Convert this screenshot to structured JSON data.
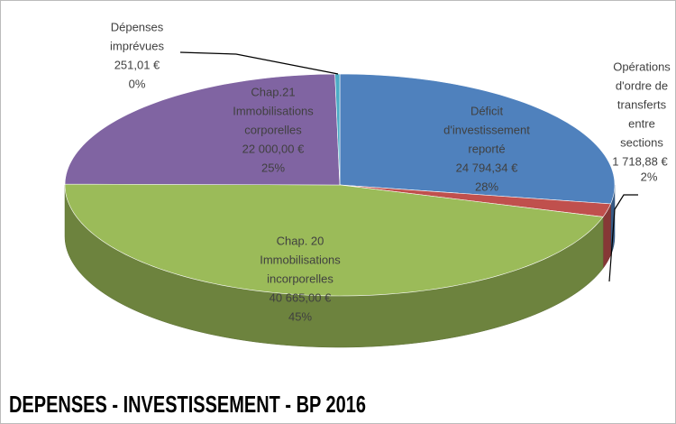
{
  "chart_data": {
    "type": "pie",
    "title": "DEPENSES - INVESTISSEMENT - BP 2016",
    "categories": [
      [
        "Déficit",
        "d'investissement",
        "reporté"
      ],
      [
        "Opérations",
        "d'ordre de",
        "transferts",
        "entre",
        "sections"
      ],
      [
        "Chap. 20",
        "Immobilisations",
        "incorporelles"
      ],
      [
        "Chap.21",
        "Immobilisations",
        "corporelles"
      ],
      [
        "Dépenses",
        "imprévues"
      ]
    ],
    "values": [
      24794.34,
      1718.88,
      40665.0,
      22000.0,
      251.01
    ],
    "value_labels": [
      "24 794,34 €",
      "1 718,88 €",
      "40 665,00 €",
      "22 000,00 €",
      "251,01 €"
    ],
    "percentages": [
      28,
      2,
      45,
      25,
      0
    ],
    "percentage_labels": [
      "28%",
      "2%",
      "45%",
      "25%",
      "0%"
    ],
    "colors": [
      "#4f81bd",
      "#c0504d",
      "#9bbb59",
      "#8064a2",
      "#4bacc6"
    ]
  }
}
